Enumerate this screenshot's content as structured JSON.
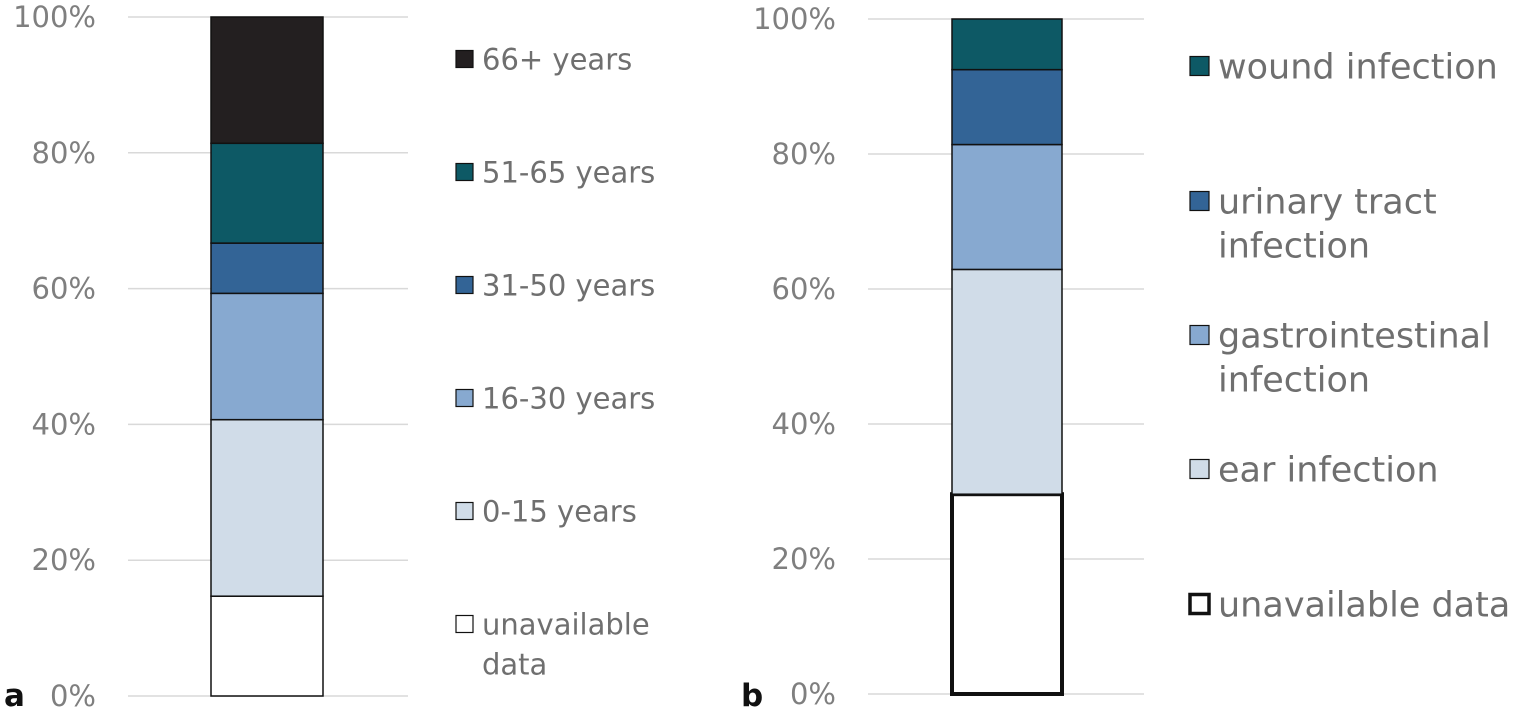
{
  "chart_data": [
    {
      "panel_label": "a",
      "type": "bar",
      "stacked": true,
      "percent_stacked": true,
      "categories": [
        ""
      ],
      "ylim": [
        0,
        100
      ],
      "yticks": [
        "0%",
        "20%",
        "40%",
        "60%",
        "80%",
        "100%"
      ],
      "grid": true,
      "legend_position": "right",
      "series": [
        {
          "name": "unavailable data",
          "values": [
            14.7
          ],
          "color": "#ffffff"
        },
        {
          "name": "0-15 years",
          "values": [
            26.0
          ],
          "color": "#d0dce8"
        },
        {
          "name": "16-30 years",
          "values": [
            18.6
          ],
          "color": "#87a9d0"
        },
        {
          "name": "31-50 years",
          "values": [
            7.4
          ],
          "color": "#336496"
        },
        {
          "name": "51-65 years",
          "values": [
            14.7
          ],
          "color": "#0d5965"
        },
        {
          "name": "66+ years",
          "values": [
            18.6
          ],
          "color": "#231f20"
        }
      ]
    },
    {
      "panel_label": "b",
      "type": "bar",
      "stacked": true,
      "percent_stacked": true,
      "categories": [
        ""
      ],
      "ylim": [
        0,
        100
      ],
      "yticks": [
        "0%",
        "20%",
        "40%",
        "60%",
        "80%",
        "100%"
      ],
      "grid": true,
      "legend_position": "right",
      "series": [
        {
          "name": "unavailable data",
          "values": [
            29.6
          ],
          "color": "#ffffff"
        },
        {
          "name": "ear infection",
          "values": [
            33.3
          ],
          "color": "#d0dce8"
        },
        {
          "name": "gastrointestinal infection",
          "values": [
            18.5
          ],
          "color": "#87a9d0"
        },
        {
          "name": "urinary tract infection",
          "values": [
            11.1
          ],
          "color": "#336496"
        },
        {
          "name": "wound infection",
          "values": [
            7.5
          ],
          "color": "#0d5965"
        }
      ]
    }
  ]
}
